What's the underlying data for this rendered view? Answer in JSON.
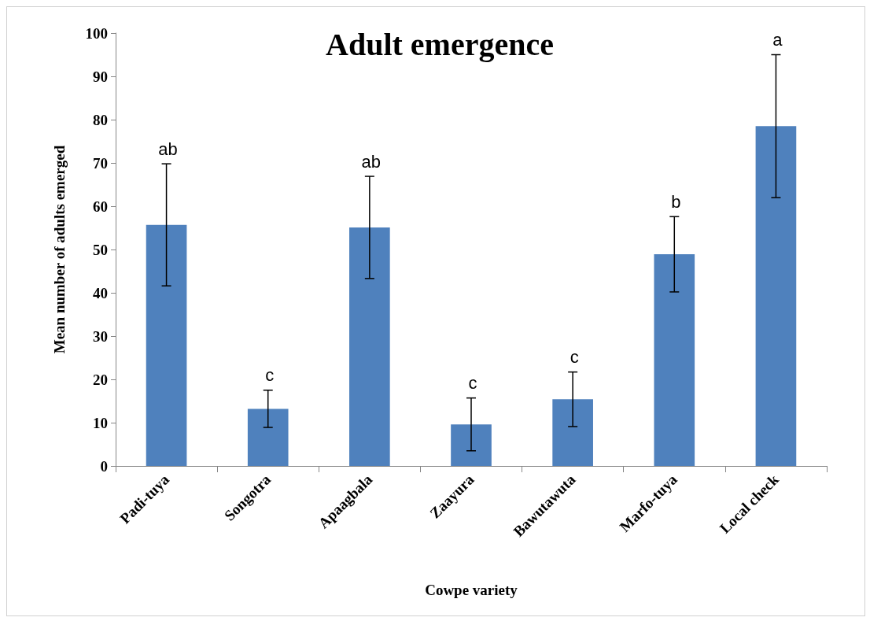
{
  "chart_data": {
    "type": "bar",
    "title": "Adult emergence",
    "xlabel": "Cowpe variety",
    "ylabel": "Mean number of adults emerged",
    "categories": [
      "Padi-tuya",
      "Songotra",
      "Apaagbala",
      "Zaayura",
      "Bawutawuta",
      "Marfo-tuya",
      "Local check"
    ],
    "values": [
      55.7,
      13.2,
      55.1,
      9.6,
      15.4,
      48.9,
      78.5
    ],
    "errors": [
      14.1,
      4.3,
      11.8,
      6.1,
      6.3,
      8.7,
      16.5
    ],
    "color": "#4f81bd",
    "ylim": [
      0,
      100
    ],
    "yticks": [
      0,
      10,
      20,
      30,
      40,
      50,
      60,
      70,
      80,
      90,
      100
    ],
    "grid": false,
    "annotations": [
      "ab",
      "c",
      "ab",
      "c",
      "c",
      "b",
      "a"
    ]
  }
}
